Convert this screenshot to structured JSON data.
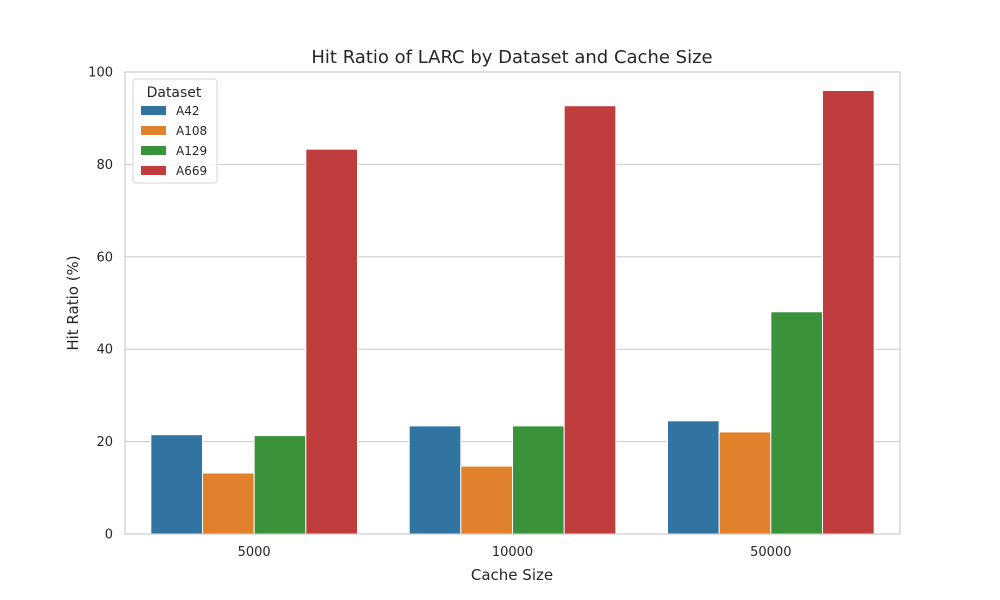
{
  "chart_data": {
    "type": "bar",
    "title": "Hit Ratio of LARC by Dataset and Cache Size",
    "xlabel": "Cache Size",
    "ylabel": "Hit Ratio (%)",
    "categories": [
      "5000",
      "10000",
      "50000"
    ],
    "ylim": [
      0,
      100
    ],
    "yticks": [
      0,
      20,
      40,
      60,
      80,
      100
    ],
    "grid": "y",
    "legend": {
      "title": "Dataset",
      "placement": "top-left"
    },
    "series": [
      {
        "name": "A42",
        "color": "#3274a1",
        "values": [
          21.5,
          23.4,
          24.5
        ]
      },
      {
        "name": "A108",
        "color": "#e1812c",
        "values": [
          13.2,
          14.7,
          22.1
        ]
      },
      {
        "name": "A129",
        "color": "#3a923a",
        "values": [
          21.3,
          23.4,
          48.1
        ]
      },
      {
        "name": "A669",
        "color": "#c03d3e",
        "values": [
          83.3,
          92.7,
          96.0
        ]
      }
    ]
  }
}
